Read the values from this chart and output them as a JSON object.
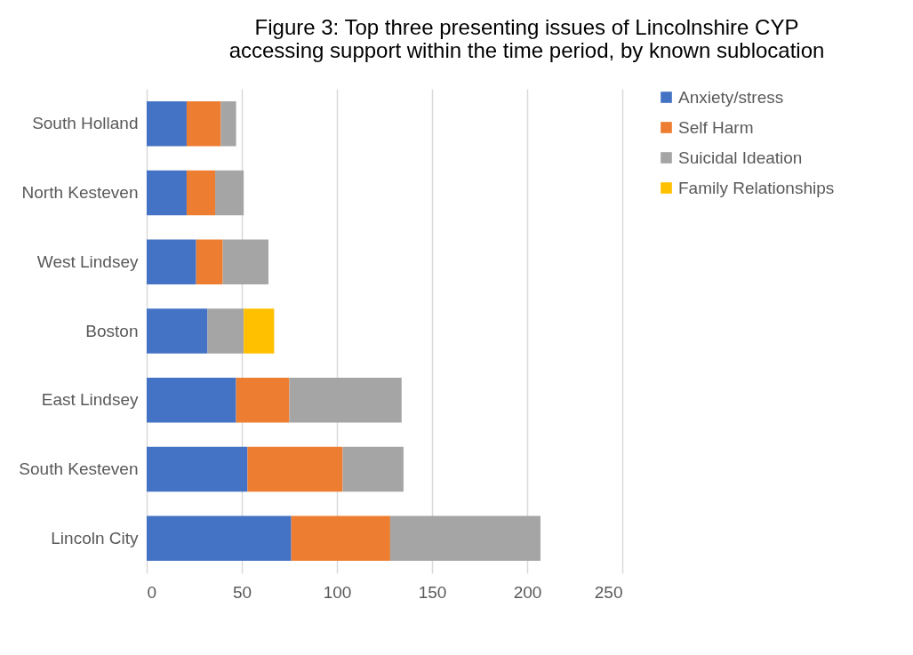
{
  "chart_data": {
    "type": "bar",
    "orientation": "horizontal",
    "stacked": true,
    "title": "Figure 3: Top three presenting issues of Lincolnshire CYP accessing support within the time period, by known sublocation",
    "categories": [
      "South Holland",
      "North Kesteven",
      "West Lindsey",
      "Boston",
      "East Lindsey",
      "South Kesteven",
      "Lincoln City"
    ],
    "series": [
      {
        "name": "Anxiety/stress",
        "color": "#4472c4",
        "values": [
          21,
          21,
          26,
          32,
          47,
          53,
          76
        ]
      },
      {
        "name": "Self Harm",
        "color": "#ed7d31",
        "values": [
          18,
          15,
          14,
          null,
          28,
          50,
          52
        ]
      },
      {
        "name": "Suicidal Ideation",
        "color": "#a5a5a5",
        "values": [
          8,
          15,
          24,
          19,
          59,
          32,
          79
        ]
      },
      {
        "name": "Family Relationships",
        "color": "#ffc000",
        "values": [
          null,
          null,
          null,
          16,
          null,
          null,
          null
        ]
      }
    ],
    "xlim": [
      0,
      250
    ],
    "xticks": [
      0,
      50,
      100,
      150,
      200,
      250
    ],
    "grid": "x",
    "legend": "right"
  }
}
